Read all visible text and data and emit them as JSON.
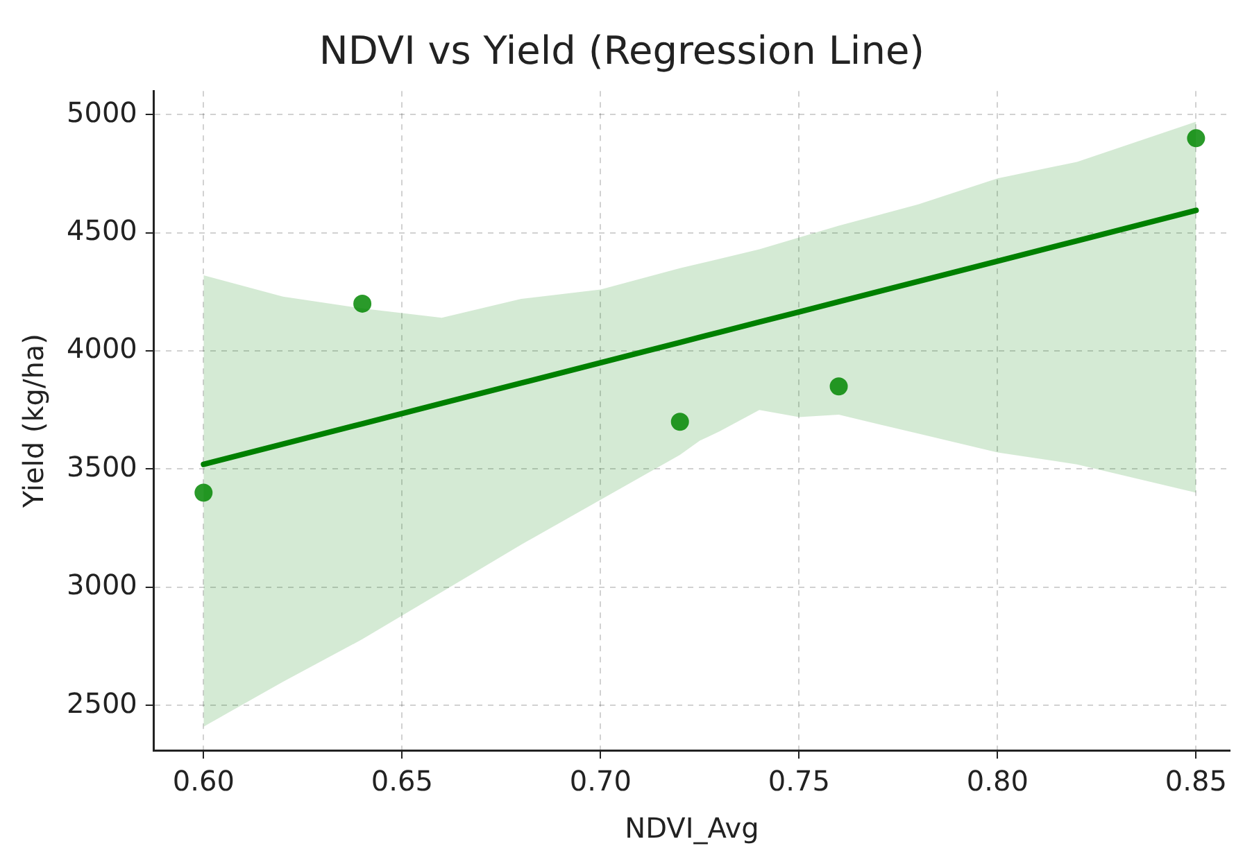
{
  "chart_data": {
    "type": "scatter",
    "title": "NDVI vs Yield (Regression Line)",
    "xlabel": "NDVI_Avg",
    "ylabel": "Yield (kg/ha)",
    "xlim": [
      0.5875,
      0.8585
    ],
    "ylim": [
      2310,
      5100
    ],
    "xticks": [
      {
        "value": 0.6,
        "label": "0.60"
      },
      {
        "value": 0.65,
        "label": "0.65"
      },
      {
        "value": 0.7,
        "label": "0.70"
      },
      {
        "value": 0.75,
        "label": "0.75"
      },
      {
        "value": 0.8,
        "label": "0.80"
      },
      {
        "value": 0.85,
        "label": "0.85"
      }
    ],
    "yticks": [
      2500,
      3000,
      3500,
      4000,
      4500,
      5000
    ],
    "grid": true,
    "legend": false,
    "series": [
      {
        "type": "line",
        "color": "#008000",
        "marker": "none",
        "line_style": "solid",
        "x": [
          0.6,
          0.62,
          0.64,
          0.66,
          0.68,
          0.7,
          0.72,
          0.725,
          0.73,
          0.74,
          0.75,
          0.76,
          0.78,
          0.8,
          0.82,
          0.85
        ],
        "values": [
          3520,
          3606,
          3692,
          3778,
          3864,
          3950,
          4036,
          4058,
          4079,
          4122,
          4165,
          4208,
          4294,
          4380,
          4466,
          4595
        ],
        "upper": [
          4320,
          4230,
          4180,
          4140,
          4220,
          4260,
          4350,
          4370,
          4390,
          4430,
          4480,
          4530,
          4620,
          4730,
          4800,
          4970
        ],
        "lower": [
          2410,
          2600,
          2780,
          2980,
          3180,
          3370,
          3560,
          3620,
          3660,
          3750,
          3720,
          3730,
          3650,
          3570,
          3520,
          3400
        ]
      },
      {
        "type": "scatter",
        "color": "#2a9a2a",
        "marker": "circle",
        "x": [
          0.6,
          0.64,
          0.72,
          0.76,
          0.85
        ],
        "values": [
          3400,
          4200,
          3700,
          3850,
          4900
        ]
      }
    ]
  }
}
